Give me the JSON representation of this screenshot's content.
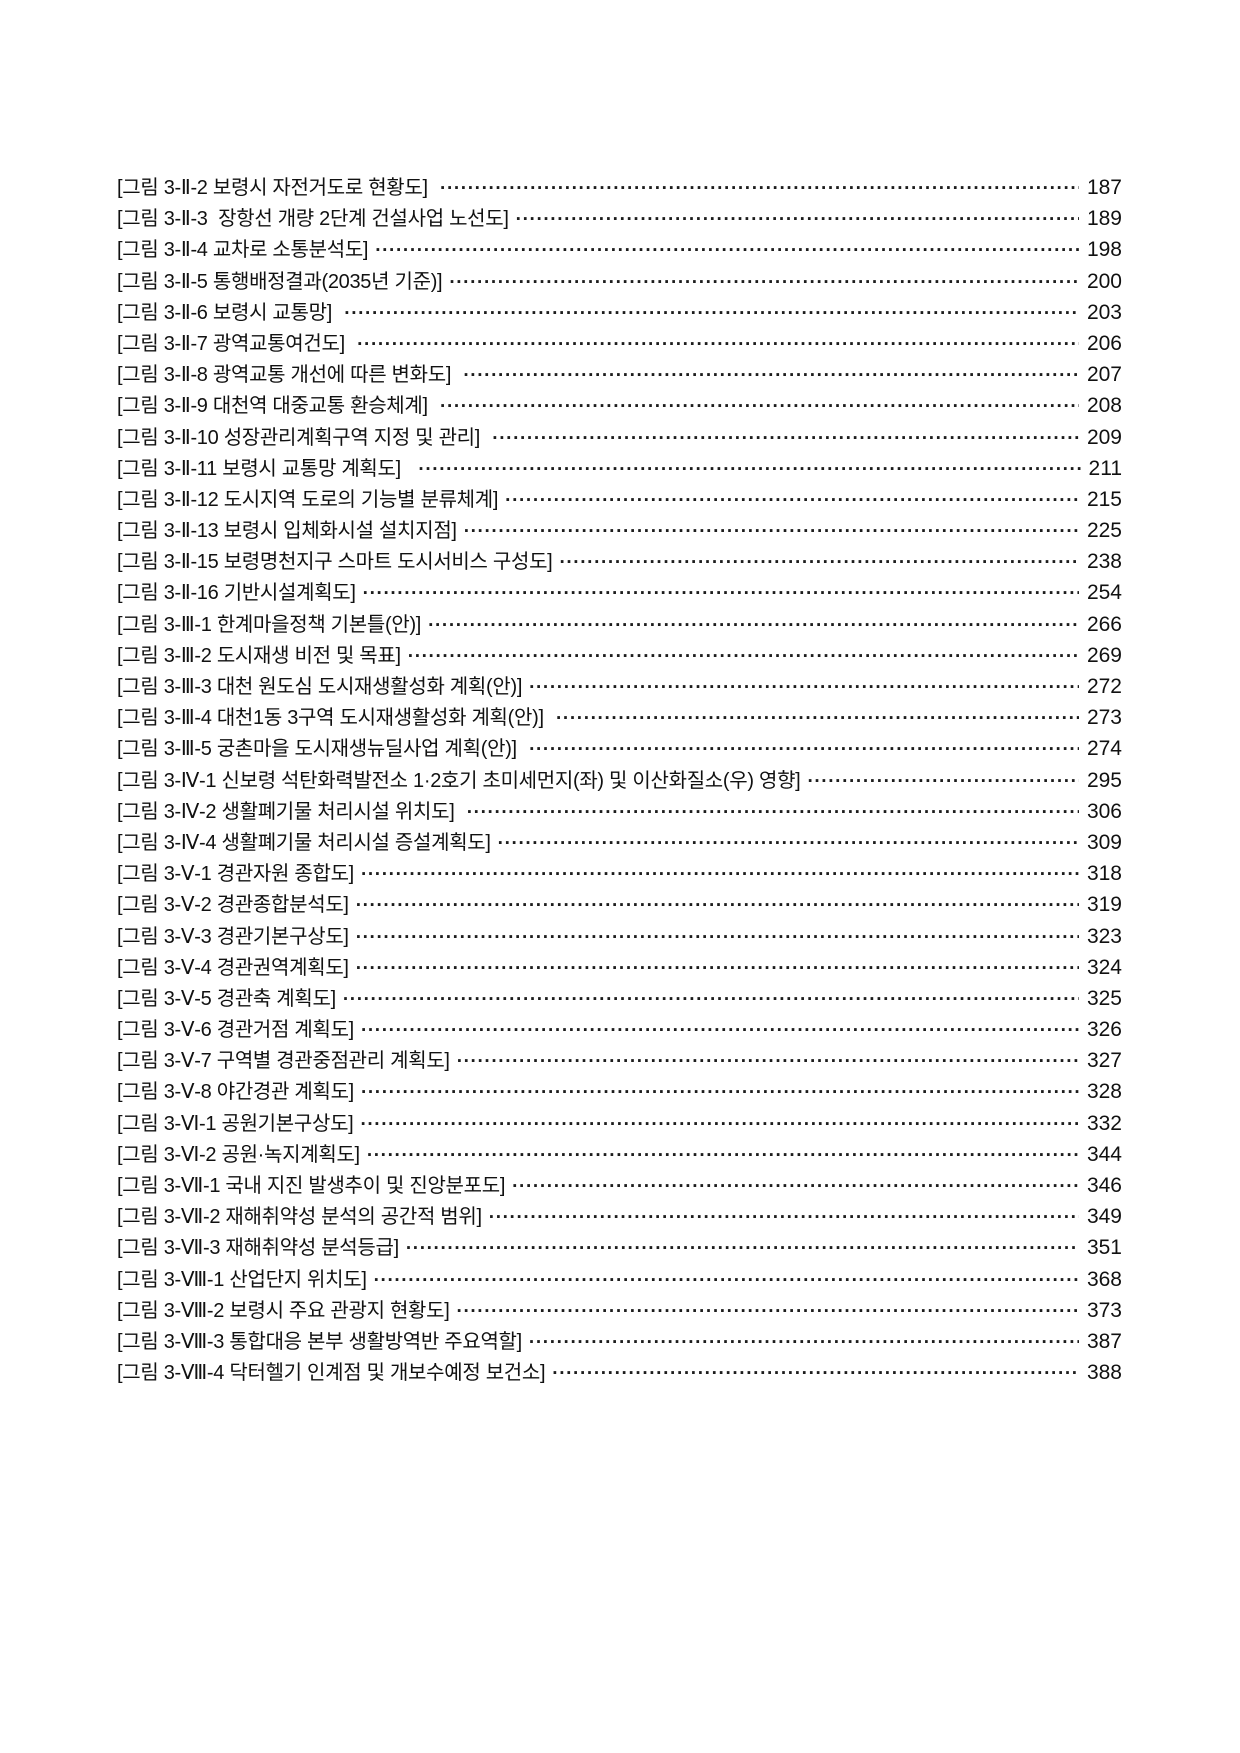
{
  "page": {
    "background": "#ffffff",
    "text_color": "#111111"
  },
  "toc": {
    "entries": [
      {
        "label": "[그림 3-Ⅱ-2 보령시 자전거도로 현황도] ",
        "page": "187"
      },
      {
        "label": "[그림 3-Ⅱ-3  장항선 개량 2단계 건설사업 노선도]",
        "page": "189"
      },
      {
        "label": "[그림 3-Ⅱ-4 교차로 소통분석도]",
        "page": "198"
      },
      {
        "label": "[그림 3-Ⅱ-5 통행배정결과(2035년 기준)]",
        "page": "200"
      },
      {
        "label": "[그림 3-Ⅱ-6 보령시 교통망] ",
        "page": "203"
      },
      {
        "label": "[그림 3-Ⅱ-7 광역교통여건도] ",
        "page": "206"
      },
      {
        "label": "[그림 3-Ⅱ-8 광역교통 개선에 따른 변화도] ",
        "page": "207"
      },
      {
        "label": "[그림 3-Ⅱ-9 대천역 대중교통 환승체계] ",
        "page": "208"
      },
      {
        "label": "[그림 3-Ⅱ-10 성장관리계획구역 지정 및 관리] ",
        "page": "209"
      },
      {
        "label": "[그림 3-Ⅱ-11 보령시 교통망 계획도]  ",
        "page": "211"
      },
      {
        "label": "[그림 3-Ⅱ-12 도시지역 도로의 기능별 분류체계]",
        "page": "215"
      },
      {
        "label": "[그림 3-Ⅱ-13 보령시 입체화시설 설치지점]",
        "page": "225"
      },
      {
        "label": "[그림 3-Ⅱ-15 보령명천지구 스마트 도시서비스 구성도]",
        "page": "238"
      },
      {
        "label": "[그림 3-Ⅱ-16 기반시설계획도]",
        "page": "254"
      },
      {
        "label": "[그림 3-Ⅲ-1 한계마을정책 기본틀(안)]",
        "page": "266"
      },
      {
        "label": "[그림 3-Ⅲ-2 도시재생 비전 및 목표]",
        "page": "269"
      },
      {
        "label": "[그림 3-Ⅲ-3 대천 원도심 도시재생활성화 계획(안)]",
        "page": "272"
      },
      {
        "label": "[그림 3-Ⅲ-4 대천1동 3구역 도시재생활성화 계획(안)] ",
        "page": "273"
      },
      {
        "label": "[그림 3-Ⅲ-5 궁촌마을 도시재생뉴딜사업 계획(안)] ",
        "page": "274"
      },
      {
        "label": "[그림 3-Ⅳ-1 신보령 석탄화력발전소 1·2호기 초미세먼지(좌) 및 이산화질소(우) 영향]",
        "page": "295"
      },
      {
        "label": "[그림 3-Ⅳ-2 생활폐기물 처리시설 위치도] ",
        "page": "306"
      },
      {
        "label": "[그림 3-Ⅳ-4 생활폐기물 처리시설 증설계획도]",
        "page": "309"
      },
      {
        "label": "[그림 3-Ⅴ-1 경관자원 종합도]",
        "page": "318"
      },
      {
        "label": "[그림 3-Ⅴ-2 경관종합분석도]",
        "page": "319"
      },
      {
        "label": "[그림 3-Ⅴ-3 경관기본구상도]",
        "page": "323"
      },
      {
        "label": "[그림 3-Ⅴ-4 경관권역계획도]",
        "page": "324"
      },
      {
        "label": "[그림 3-Ⅴ-5 경관축 계획도]",
        "page": "325"
      },
      {
        "label": "[그림 3-Ⅴ-6 경관거점 계획도]",
        "page": "326"
      },
      {
        "label": "[그림 3-Ⅴ-7 구역별 경관중점관리 계획도]",
        "page": "327"
      },
      {
        "label": "[그림 3-Ⅴ-8 야간경관 계획도]",
        "page": "328"
      },
      {
        "label": "[그림 3-Ⅵ-1 공원기본구상도]",
        "page": "332"
      },
      {
        "label": "[그림 3-Ⅵ-2 공원·녹지계획도]",
        "page": "344"
      },
      {
        "label": "[그림 3-Ⅶ-1 국내 지진 발생추이 및 진앙분포도]",
        "page": "346"
      },
      {
        "label": "[그림 3-Ⅶ-2 재해취약성 분석의 공간적 범위]",
        "page": "349"
      },
      {
        "label": "[그림 3-Ⅶ-3 재해취약성 분석등급]",
        "page": "351"
      },
      {
        "label": "[그림 3-Ⅷ-1 산업단지 위치도]",
        "page": "368"
      },
      {
        "label": "[그림 3-Ⅷ-2 보령시 주요 관광지 현황도]",
        "page": "373"
      },
      {
        "label": "[그림 3-Ⅷ-3 통합대응 본부 생활방역반 주요역할]",
        "page": "387"
      },
      {
        "label": "[그림 3-Ⅷ-4 닥터헬기 인계점 및 개보수예정 보건소]",
        "page": "388"
      }
    ]
  }
}
